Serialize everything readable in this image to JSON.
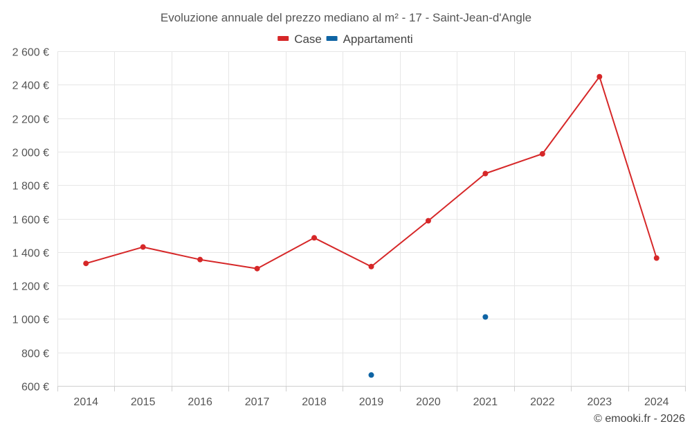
{
  "chart_data": {
    "type": "line",
    "title": "Evoluzione annuale del prezzo mediano al m² - 17 - Saint-Jean-d'Angle",
    "categories": [
      "2014",
      "2015",
      "2016",
      "2017",
      "2018",
      "2019",
      "2020",
      "2021",
      "2022",
      "2023",
      "2024"
    ],
    "series": [
      {
        "name": "Case",
        "color": "#d62728",
        "values": [
          1332,
          1430,
          1355,
          1301,
          1485,
          1313,
          1587,
          1869,
          1987,
          2448,
          1364
        ]
      },
      {
        "name": "Appartamenti",
        "color": "#0e64a4",
        "values": [
          null,
          null,
          null,
          null,
          null,
          665,
          null,
          1012,
          null,
          null,
          null
        ]
      }
    ],
    "ylim": [
      600,
      2600
    ],
    "yticks": [
      600,
      800,
      1000,
      1200,
      1400,
      1600,
      1800,
      2000,
      2200,
      2400,
      2600
    ],
    "ytick_labels": [
      "600 €",
      "800 €",
      "1 000 €",
      "1 200 €",
      "1 400 €",
      "1 600 €",
      "1 800 €",
      "2 000 €",
      "2 200 €",
      "2 400 €",
      "2 600 €"
    ],
    "xlabel": "",
    "ylabel": "",
    "grid": true,
    "legend_position": "top-center"
  },
  "credit": "© emooki.fr - 2026"
}
